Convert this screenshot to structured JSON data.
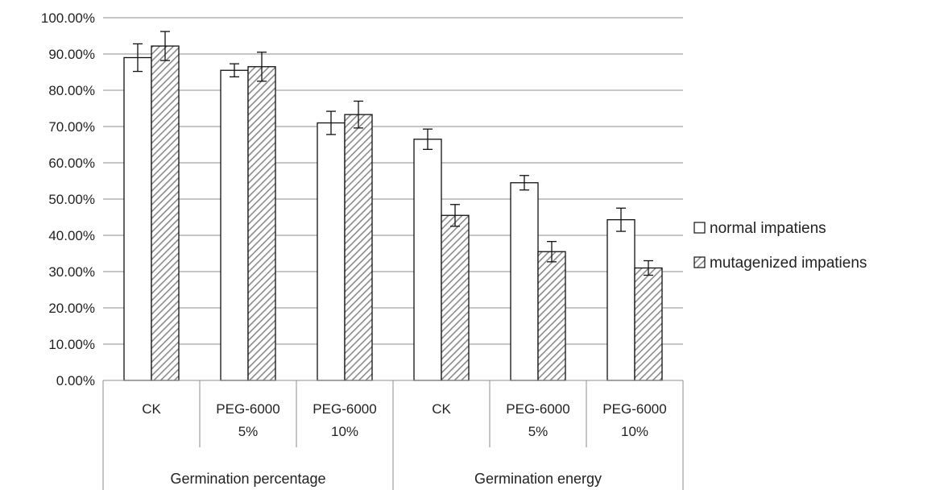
{
  "chart_data": {
    "type": "bar",
    "title": "",
    "xlabel": "",
    "ylabel": "",
    "ylim": [
      0,
      100
    ],
    "yticks": [
      0,
      10,
      20,
      30,
      40,
      50,
      60,
      70,
      80,
      90,
      100
    ],
    "tick_suffix": "%",
    "tick_decimals": 2,
    "grid": true,
    "legend_position": "right",
    "groups": [
      {
        "label": "Germination percentage",
        "categories": [
          0,
          1,
          2
        ]
      },
      {
        "label": "Germination energy",
        "categories": [
          3,
          4,
          5
        ]
      }
    ],
    "categories": [
      [
        "CK"
      ],
      [
        "PEG-6000",
        "5%"
      ],
      [
        "PEG-6000",
        "10%"
      ],
      [
        "CK"
      ],
      [
        "PEG-6000",
        "5%"
      ],
      [
        "PEG-6000",
        "10%"
      ]
    ],
    "series": [
      {
        "name": "normal impatiens",
        "pattern": "none",
        "fill": "#ffffff",
        "values": [
          89.0,
          85.5,
          71.0,
          66.5,
          54.5,
          44.3
        ],
        "errors": [
          3.8,
          1.8,
          3.2,
          2.8,
          2.0,
          3.2
        ]
      },
      {
        "name": "mutagenized impatiens",
        "pattern": "diagonal-hatch",
        "fill": "#8a8a8a",
        "values": [
          92.2,
          86.5,
          73.3,
          45.5,
          35.5,
          31.0
        ],
        "errors": [
          4.0,
          4.0,
          3.7,
          3.0,
          2.8,
          2.0
        ]
      }
    ]
  }
}
